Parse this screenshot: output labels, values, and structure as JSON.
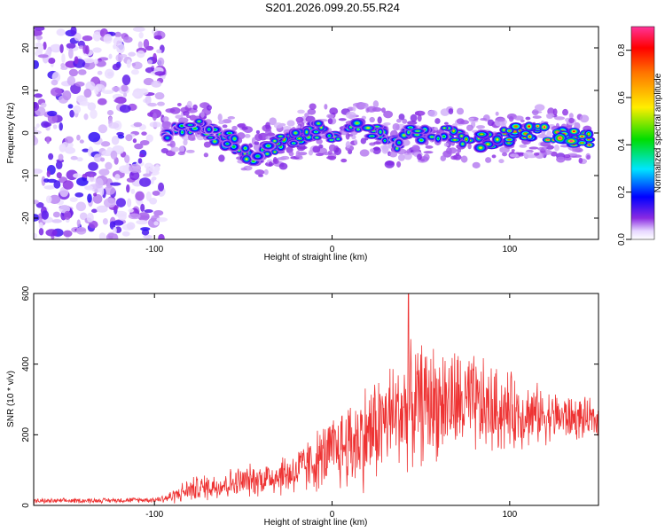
{
  "title": "S201.2026.099.20.55.R24",
  "chart_data": [
    {
      "type": "heatmap",
      "xlabel": "Height of straight line (km)",
      "ylabel": "Frequency (Hz)",
      "xlim": [
        -168,
        150
      ],
      "ylim": [
        -25,
        25
      ],
      "xticks": [
        -100,
        0,
        100
      ],
      "yticks": [
        -20,
        -10,
        0,
        10,
        20
      ],
      "colorbar": {
        "label": "Normalized spectral amplitude",
        "range": [
          0,
          0.9
        ],
        "ticks": [
          0.0,
          0.2,
          0.4,
          0.6,
          0.8
        ]
      },
      "noise_region_x": [
        -168,
        -95
      ],
      "ridge": {
        "x": [
          -95,
          -85,
          -75,
          -65,
          -55,
          -45,
          -35,
          -25,
          -15,
          -5,
          5,
          15,
          25,
          35,
          45,
          55,
          65,
          75,
          85,
          95,
          105,
          115,
          125,
          135,
          145
        ],
        "freq": [
          -1,
          1,
          2,
          -1,
          -2,
          -6,
          -3,
          -2,
          0,
          1,
          -1,
          1,
          1,
          -3,
          0,
          -1,
          0,
          -1,
          -2,
          -1,
          0,
          0,
          0,
          -1,
          -2
        ],
        "amplitude": [
          0.35,
          0.4,
          0.45,
          0.45,
          0.5,
          0.45,
          0.5,
          0.55,
          0.5,
          0.5,
          0.45,
          0.5,
          0.45,
          0.45,
          0.45,
          0.5,
          0.5,
          0.55,
          0.6,
          0.6,
          0.7,
          0.8,
          0.85,
          0.8,
          0.75
        ]
      }
    },
    {
      "type": "line",
      "xlabel": "Height of straight line (km)",
      "ylabel": "SNR (10 * v/v)",
      "xlim": [
        -168,
        150
      ],
      "ylim": [
        0,
        600
      ],
      "xticks": [
        -100,
        0,
        100
      ],
      "yticks": [
        0,
        200,
        400,
        600
      ],
      "color": "#ee3333",
      "envelope": {
        "x": [
          -168,
          -130,
          -100,
          -92,
          -80,
          -60,
          -40,
          -20,
          0,
          10,
          20,
          30,
          40,
          50,
          60,
          70,
          80,
          90,
          100,
          110,
          120,
          130,
          140,
          150
        ],
        "mean": [
          12,
          14,
          16,
          22,
          45,
          60,
          75,
          95,
          150,
          175,
          200,
          240,
          270,
          290,
          295,
          290,
          280,
          270,
          265,
          260,
          255,
          250,
          245,
          240
        ],
        "amp": [
          8,
          8,
          9,
          20,
          40,
          50,
          55,
          80,
          120,
          160,
          180,
          180,
          190,
          200,
          190,
          180,
          170,
          150,
          130,
          110,
          90,
          80,
          70,
          60
        ]
      },
      "peak": {
        "x": 43,
        "y": 600
      }
    }
  ]
}
